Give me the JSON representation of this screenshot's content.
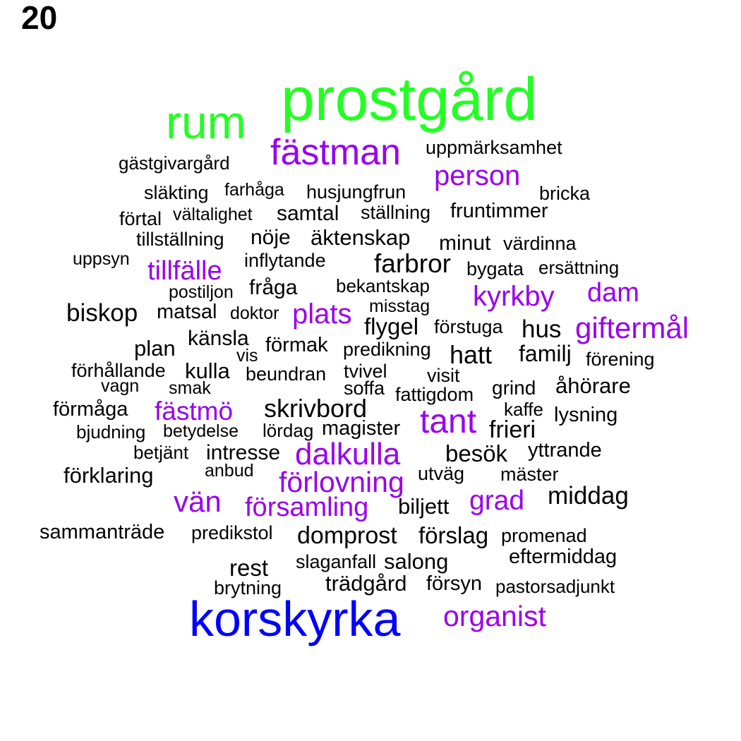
{
  "label": "20",
  "colors": {
    "green": "#22ff22",
    "blue": "#0000ff",
    "purple": "#9900ee",
    "black": "#000000"
  },
  "words": [
    {
      "text": "prostgård",
      "color": "green"
    },
    {
      "text": "rum",
      "color": "green"
    },
    {
      "text": "korskyrka",
      "color": "blue"
    },
    {
      "text": "fästman",
      "color": "purple"
    },
    {
      "text": "uppmärksamhet",
      "color": "black"
    },
    {
      "text": "gästgivargård",
      "color": "black"
    },
    {
      "text": "person",
      "color": "purple"
    },
    {
      "text": "släkting",
      "color": "black"
    },
    {
      "text": "farhåga",
      "color": "black"
    },
    {
      "text": "husjungfrun",
      "color": "black"
    },
    {
      "text": "bricka",
      "color": "black"
    },
    {
      "text": "förtal",
      "color": "black"
    },
    {
      "text": "vältalighet",
      "color": "black"
    },
    {
      "text": "samtal",
      "color": "black"
    },
    {
      "text": "ställning",
      "color": "black"
    },
    {
      "text": "fruntimmer",
      "color": "black"
    },
    {
      "text": "tillställning",
      "color": "black"
    },
    {
      "text": "nöje",
      "color": "black"
    },
    {
      "text": "äktenskap",
      "color": "black"
    },
    {
      "text": "minut",
      "color": "black"
    },
    {
      "text": "värdinna",
      "color": "black"
    },
    {
      "text": "uppsyn",
      "color": "black"
    },
    {
      "text": "inflytande",
      "color": "black"
    },
    {
      "text": "farbror",
      "color": "black"
    },
    {
      "text": "bygata",
      "color": "black"
    },
    {
      "text": "ersättning",
      "color": "black"
    },
    {
      "text": "tillfälle",
      "color": "purple"
    },
    {
      "text": "postiljon",
      "color": "black"
    },
    {
      "text": "fråga",
      "color": "black"
    },
    {
      "text": "bekantskap",
      "color": "black"
    },
    {
      "text": "kyrkby",
      "color": "purple"
    },
    {
      "text": "dam",
      "color": "purple"
    },
    {
      "text": "biskop",
      "color": "black"
    },
    {
      "text": "matsal",
      "color": "black"
    },
    {
      "text": "doktor",
      "color": "black"
    },
    {
      "text": "plats",
      "color": "purple"
    },
    {
      "text": "misstag",
      "color": "black"
    },
    {
      "text": "flygel",
      "color": "black"
    },
    {
      "text": "förstuga",
      "color": "black"
    },
    {
      "text": "hus",
      "color": "black"
    },
    {
      "text": "giftermål",
      "color": "purple"
    },
    {
      "text": "känsla",
      "color": "black"
    },
    {
      "text": "plan",
      "color": "black"
    },
    {
      "text": "förmak",
      "color": "black"
    },
    {
      "text": "predikning",
      "color": "black"
    },
    {
      "text": "hatt",
      "color": "black"
    },
    {
      "text": "familj",
      "color": "black"
    },
    {
      "text": "förening",
      "color": "black"
    },
    {
      "text": "vis",
      "color": "black"
    },
    {
      "text": "förhållande",
      "color": "black"
    },
    {
      "text": "kulla",
      "color": "black"
    },
    {
      "text": "beundran",
      "color": "black"
    },
    {
      "text": "tvivel",
      "color": "black"
    },
    {
      "text": "visit",
      "color": "black"
    },
    {
      "text": "vagn",
      "color": "black"
    },
    {
      "text": "smak",
      "color": "black"
    },
    {
      "text": "soffa",
      "color": "black"
    },
    {
      "text": "fattigdom",
      "color": "black"
    },
    {
      "text": "grind",
      "color": "black"
    },
    {
      "text": "åhörare",
      "color": "black"
    },
    {
      "text": "förmåga",
      "color": "black"
    },
    {
      "text": "fästmö",
      "color": "purple"
    },
    {
      "text": "skrivbord",
      "color": "black"
    },
    {
      "text": "tant",
      "color": "purple"
    },
    {
      "text": "kaffe",
      "color": "black"
    },
    {
      "text": "lysning",
      "color": "black"
    },
    {
      "text": "bjudning",
      "color": "black"
    },
    {
      "text": "betydelse",
      "color": "black"
    },
    {
      "text": "lördag",
      "color": "black"
    },
    {
      "text": "magister",
      "color": "black"
    },
    {
      "text": "frieri",
      "color": "black"
    },
    {
      "text": "betjänt",
      "color": "black"
    },
    {
      "text": "intresse",
      "color": "black"
    },
    {
      "text": "dalkulla",
      "color": "purple"
    },
    {
      "text": "besök",
      "color": "black"
    },
    {
      "text": "yttrande",
      "color": "black"
    },
    {
      "text": "förklaring",
      "color": "black"
    },
    {
      "text": "anbud",
      "color": "black"
    },
    {
      "text": "förlovning",
      "color": "purple"
    },
    {
      "text": "utväg",
      "color": "black"
    },
    {
      "text": "mäster",
      "color": "black"
    },
    {
      "text": "vän",
      "color": "purple"
    },
    {
      "text": "grad",
      "color": "purple"
    },
    {
      "text": "middag",
      "color": "black"
    },
    {
      "text": "församling",
      "color": "purple"
    },
    {
      "text": "biljett",
      "color": "black"
    },
    {
      "text": "sammanträde",
      "color": "black"
    },
    {
      "text": "predikstol",
      "color": "black"
    },
    {
      "text": "domprost",
      "color": "black"
    },
    {
      "text": "förslag",
      "color": "black"
    },
    {
      "text": "promenad",
      "color": "black"
    },
    {
      "text": "rest",
      "color": "black"
    },
    {
      "text": "slaganfall",
      "color": "black"
    },
    {
      "text": "salong",
      "color": "black"
    },
    {
      "text": "eftermiddag",
      "color": "black"
    },
    {
      "text": "brytning",
      "color": "black"
    },
    {
      "text": "trädgård",
      "color": "black"
    },
    {
      "text": "försyn",
      "color": "black"
    },
    {
      "text": "pastorsadjunkt",
      "color": "black"
    },
    {
      "text": "organist",
      "color": "purple"
    }
  ]
}
